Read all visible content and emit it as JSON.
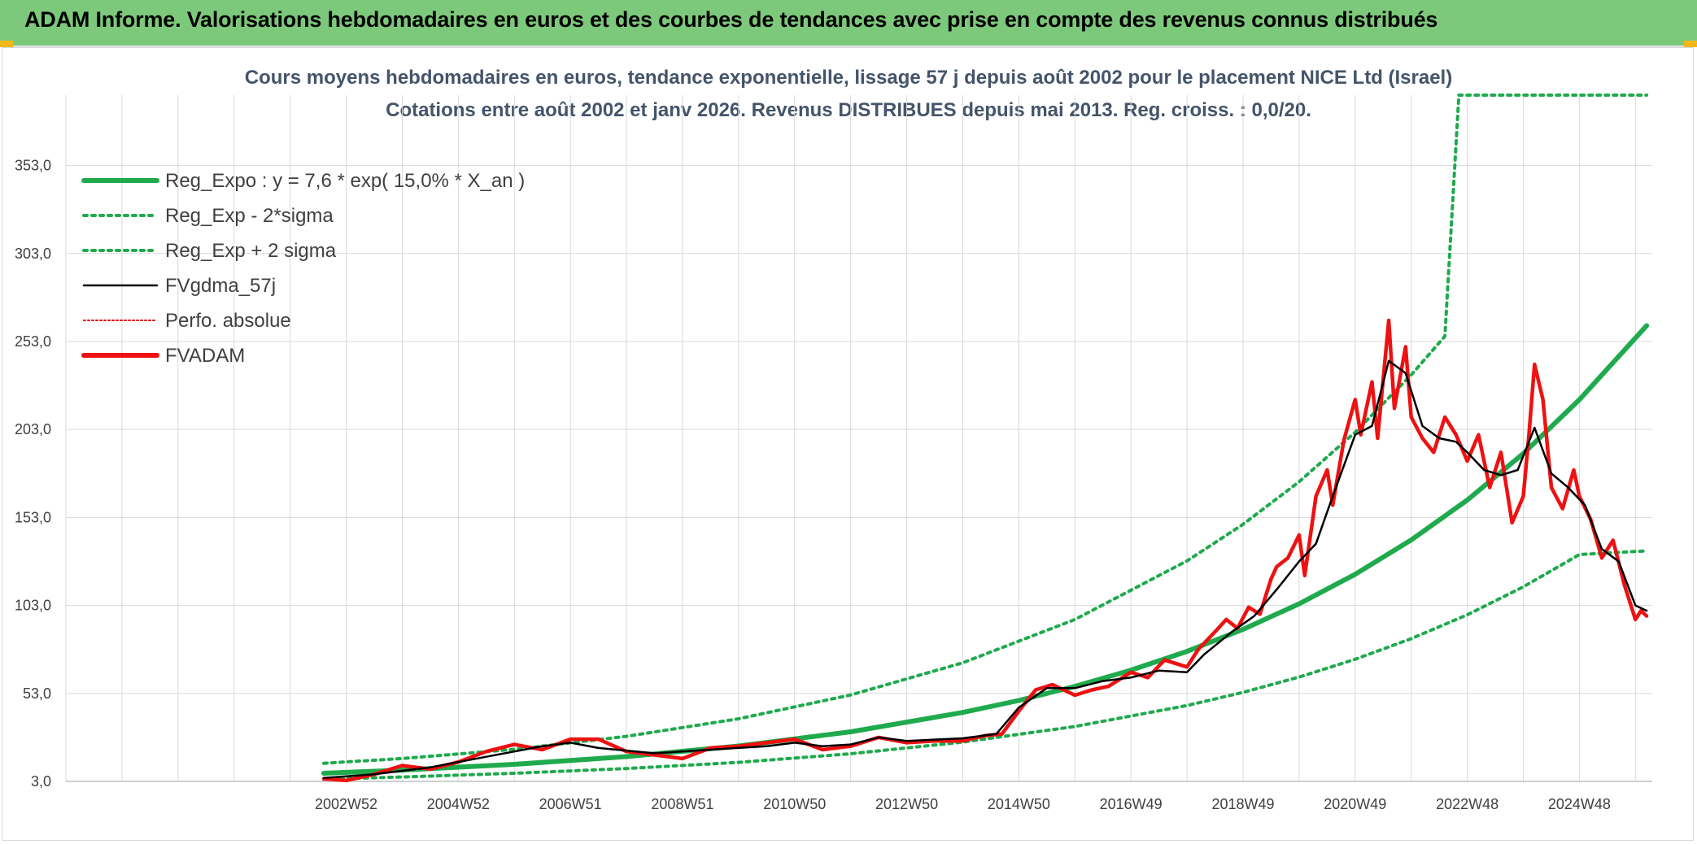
{
  "banner": {
    "title": "ADAM Informe. Valorisations hebdomadaires en euros et des courbes de tendances avec prise en compte des revenus connus distribués",
    "background": "#7dc97b"
  },
  "chart_data": {
    "type": "line",
    "title": "Cours moyens hebdomadaires en euros, tendance exponentielle, lissage 57 j depuis août 2002 pour le placement NICE Ltd (Israel)",
    "subtitle": "Cotations entre août 2002 et janv 2026. Revenus DISTRIBUES depuis mai 2013. Reg. croiss. : 0,0/20.",
    "xlabel": "",
    "ylabel": "",
    "x_range": [
      1998.0,
      2026.3
    ],
    "ylim": [
      3,
      393
    ],
    "y_ticks": [
      "3,0",
      "53,0",
      "103,0",
      "153,0",
      "203,0",
      "253,0",
      "303,0",
      "353,0"
    ],
    "y_tick_values": [
      3,
      53,
      103,
      153,
      203,
      253,
      303,
      353
    ],
    "x_ticks": [
      "2002W52",
      "2004W52",
      "2006W51",
      "2008W51",
      "2010W50",
      "2012W50",
      "2014W50",
      "2016W49",
      "2018W49",
      "2020W49",
      "2022W48",
      "2024W48"
    ],
    "x_tick_values": [
      2003.0,
      2005.0,
      2007.0,
      2009.0,
      2011.0,
      2013.0,
      2015.0,
      2017.0,
      2019.0,
      2021.0,
      2023.0,
      2025.0
    ],
    "grid": true,
    "legend_position": "top-left",
    "legend": [
      {
        "label": "Reg_Expo : y = 7,6 * exp( 15,0% *  X_an )",
        "color": "#1faa4d",
        "style": "solid-thick"
      },
      {
        "label": "Reg_Exp - 2*sigma",
        "color": "#1faa4d",
        "style": "dotted"
      },
      {
        "label": "Reg_Exp + 2 sigma",
        "color": "#1faa4d",
        "style": "dotted"
      },
      {
        "label": "FVgdma_57j",
        "color": "#000000",
        "style": "solid"
      },
      {
        "label": "Perfo. absolue",
        "color": "#e00000",
        "style": "dotted-thin"
      },
      {
        "label": "FVADAM",
        "color": "#ee1111",
        "style": "solid-thick"
      }
    ],
    "series": [
      {
        "name": "Reg_Expo : y = 7,6 * exp( 15,0% *  X_an )",
        "x": [
          2002.6,
          2004.0,
          2006.0,
          2008.0,
          2010.0,
          2012.0,
          2014.0,
          2015.0,
          2016.0,
          2017.0,
          2018.0,
          2019.0,
          2020.0,
          2021.0,
          2022.0,
          2023.0,
          2024.0,
          2025.0,
          2026.2
        ],
        "y": [
          7.6,
          9.4,
          12.7,
          17.1,
          23.1,
          31.2,
          42.2,
          49.0,
          57.0,
          66.2,
          76.9,
          89.4,
          103.9,
          120.7,
          140.2,
          162.9,
          189.3,
          219.9,
          262.0
        ]
      },
      {
        "name": "Reg_Exp - 2*sigma",
        "x": [
          2002.6,
          2004.0,
          2006.0,
          2008.0,
          2010.0,
          2012.0,
          2014.0,
          2016.0,
          2018.0,
          2019.0,
          2020.0,
          2021.0,
          2022.0,
          2023.0,
          2024.0,
          2025.0,
          2026.2
        ],
        "y": [
          4.3,
          5.5,
          7.6,
          10.3,
          13.8,
          18.7,
          25.3,
          34.2,
          46.1,
          53.6,
          62.3,
          72.4,
          84.1,
          97.7,
          113.6,
          131.9,
          134.0
        ]
      },
      {
        "name": "Reg_Exp + 2 sigma",
        "x": [
          2002.6,
          2004.0,
          2006.0,
          2008.0,
          2010.0,
          2012.0,
          2014.0,
          2016.0,
          2018.0,
          2019.0,
          2020.0,
          2021.0,
          2022.0,
          2022.6,
          2022.85,
          2026.2
        ],
        "y": [
          13.3,
          16.0,
          21.2,
          28.6,
          38.6,
          52.1,
          70.4,
          95.0,
          128.3,
          149.1,
          173.3,
          201.4,
          234.0,
          256.0,
          393.0,
          393.0
        ]
      },
      {
        "name": "FVgdma_57j",
        "x": [
          2002.6,
          2003.5,
          2004.5,
          2005.5,
          2006.5,
          2007.0,
          2007.5,
          2008.5,
          2009.5,
          2010.5,
          2011.0,
          2011.5,
          2012.0,
          2012.5,
          2013.0,
          2014.0,
          2014.6,
          2015.0,
          2015.5,
          2016.0,
          2016.5,
          2017.0,
          2017.5,
          2018.0,
          2018.3,
          2018.8,
          2019.2,
          2019.6,
          2020.0,
          2020.3,
          2020.6,
          2021.0,
          2021.3,
          2021.6,
          2021.9,
          2022.2,
          2022.5,
          2022.8,
          2023.0,
          2023.3,
          2023.6,
          2023.9,
          2024.2,
          2024.5,
          2024.8,
          2025.1,
          2025.4,
          2025.7,
          2026.0,
          2026.2
        ],
        "y": [
          5.0,
          7.0,
          11.0,
          17.0,
          23.0,
          25.0,
          22.0,
          19.0,
          21.0,
          23.0,
          25.0,
          23.0,
          24.0,
          28.0,
          26.0,
          27.5,
          30.0,
          45.0,
          56.0,
          56.0,
          60.0,
          62.0,
          66.0,
          65.0,
          75.0,
          88.0,
          97.0,
          112.0,
          128.0,
          138.0,
          165.0,
          200.0,
          205.0,
          242.0,
          235.0,
          205.0,
          198.0,
          196.0,
          190.0,
          180.0,
          177.0,
          180.0,
          204.0,
          178.0,
          170.0,
          160.0,
          135.0,
          128.0,
          103.0,
          100.0
        ]
      },
      {
        "name": "FVADAM",
        "x": [
          2002.6,
          2003.0,
          2003.5,
          2004.0,
          2004.5,
          2005.0,
          2005.5,
          2006.0,
          2006.5,
          2007.0,
          2007.5,
          2008.0,
          2008.5,
          2009.0,
          2009.5,
          2010.0,
          2010.5,
          2011.0,
          2011.5,
          2012.0,
          2012.5,
          2013.0,
          2013.5,
          2014.0,
          2014.4,
          2014.7,
          2015.0,
          2015.3,
          2015.6,
          2016.0,
          2016.3,
          2016.6,
          2017.0,
          2017.3,
          2017.6,
          2018.0,
          2018.2,
          2018.5,
          2018.7,
          2018.9,
          2019.1,
          2019.3,
          2019.5,
          2019.6,
          2019.8,
          2020.0,
          2020.1,
          2020.3,
          2020.5,
          2020.6,
          2020.8,
          2021.0,
          2021.1,
          2021.3,
          2021.4,
          2021.6,
          2021.7,
          2021.9,
          2022.0,
          2022.2,
          2022.4,
          2022.6,
          2022.8,
          2023.0,
          2023.2,
          2023.4,
          2023.6,
          2023.8,
          2024.0,
          2024.1,
          2024.2,
          2024.35,
          2024.5,
          2024.7,
          2024.9,
          2025.0,
          2025.2,
          2025.4,
          2025.6,
          2025.8,
          2026.0,
          2026.1,
          2026.2
        ],
        "y": [
          4.5,
          3.5,
          7.0,
          12.0,
          10.0,
          14.0,
          20.0,
          24.0,
          21.0,
          27.0,
          27.0,
          20.0,
          18.0,
          16.0,
          22.0,
          23.0,
          25.0,
          27.0,
          21.0,
          23.0,
          28.0,
          25.0,
          26.0,
          26.0,
          29.0,
          30.0,
          43.0,
          55.0,
          58.0,
          52.0,
          55.0,
          57.0,
          65.0,
          62.0,
          72.0,
          68.0,
          78.0,
          88.0,
          95.0,
          90.0,
          102.0,
          98.0,
          118.0,
          125.0,
          130.0,
          143.0,
          120.0,
          165.0,
          180.0,
          160.0,
          197.0,
          220.0,
          200.0,
          230.0,
          198.0,
          265.0,
          215.0,
          250.0,
          210.0,
          198.0,
          190.0,
          210.0,
          200.0,
          185.0,
          200.0,
          170.0,
          190.0,
          150.0,
          165.0,
          200.0,
          240.0,
          220.0,
          170.0,
          158.0,
          180.0,
          165.0,
          152.0,
          130.0,
          140.0,
          115.0,
          95.0,
          100.0,
          97.0
        ]
      }
    ]
  }
}
